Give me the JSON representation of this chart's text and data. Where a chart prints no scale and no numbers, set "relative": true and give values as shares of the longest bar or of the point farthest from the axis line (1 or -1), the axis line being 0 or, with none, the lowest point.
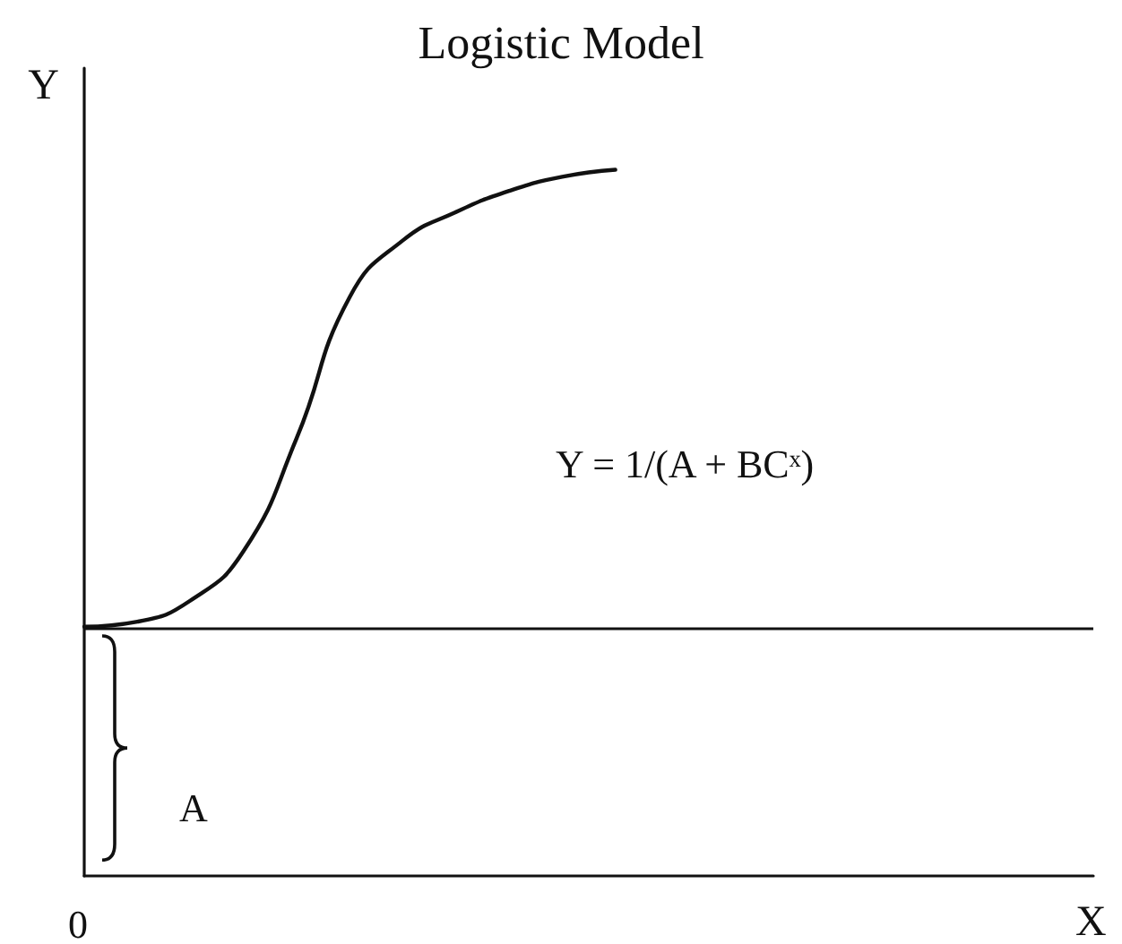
{
  "chart_data": {
    "type": "line",
    "title": "Logistic Model",
    "xlabel": "X",
    "ylabel": "Y",
    "relative": true,
    "categories": [
      null,
      null,
      null,
      null,
      null,
      null,
      null,
      null,
      null,
      null,
      null,
      null,
      null,
      null,
      null,
      null,
      null,
      null,
      null,
      null
    ],
    "series": [
      {
        "color": "#111111",
        "values": [
          0.353,
          0.36,
          0.39,
          0.46,
          0.62,
          0.82,
          0.9,
          0.94,
          0.97,
          0.99,
          1.0,
          null,
          null,
          null,
          null,
          null,
          null,
          null,
          null,
          null
        ]
      }
    ],
    "ref_lines": [
      {
        "axis": "y",
        "value": 0.353,
        "color": "#111111"
      }
    ],
    "annotations": [
      "Y = 1/(A + BCˣ)",
      "A",
      "0"
    ],
    "marker": "none",
    "line_style": "solid",
    "grid": false
  }
}
